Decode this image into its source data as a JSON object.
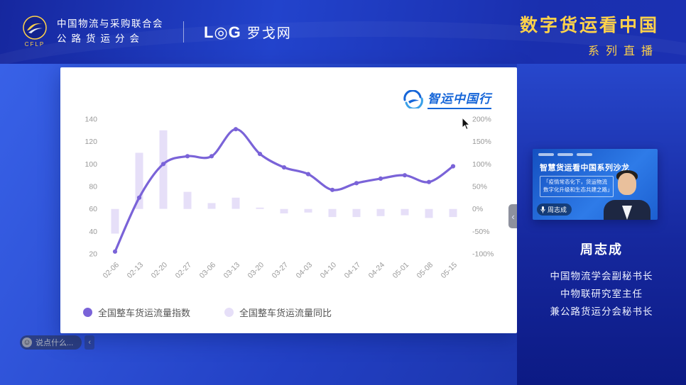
{
  "header": {
    "cflp_acronym": "CFLP",
    "org_line1": "中国物流与采购联合会",
    "org_line2": "公路货运分会",
    "partner_logo": "L◎G",
    "partner_name": "罗戈网",
    "title_main": "数字货运看中国",
    "title_sub": "系列直播"
  },
  "chart_card": {
    "watermark": "智运中国行"
  },
  "chart_data": {
    "type": "combo",
    "title": "",
    "categories": [
      "02-06",
      "02-13",
      "02-20",
      "02-27",
      "03-06",
      "03-13",
      "03-20",
      "03-27",
      "04-03",
      "04-10",
      "04-17",
      "04-24",
      "05-01",
      "05-08",
      "05-15"
    ],
    "series": [
      {
        "name": "全国整车货运流量指数",
        "type": "line",
        "axis": "left",
        "color": "#7a63d8",
        "values": [
          22,
          70,
          100,
          107,
          107,
          131,
          109,
          97,
          91,
          77,
          83,
          87,
          90,
          84,
          98
        ]
      },
      {
        "name": "全国整车货运流量同比",
        "type": "bar",
        "axis": "right",
        "color": "#e6dff8",
        "values": [
          -55,
          125,
          175,
          38,
          13,
          25,
          3,
          -10,
          -8,
          -18,
          -18,
          -16,
          -14,
          -20,
          -18
        ]
      }
    ],
    "left_axis": {
      "min": 20,
      "max": 140,
      "tick_step": 20,
      "suffix": ""
    },
    "right_axis": {
      "min": -100,
      "max": 200,
      "tick_step": 50,
      "suffix": "%"
    },
    "legend_position": "bottom",
    "grid": false
  },
  "sidebar": {
    "video": {
      "title": "智慧货运看中国系列沙龙",
      "subtitle": "「疫情常态化下，货运物流数字化升级和生态共建之路」",
      "name_tag": "周志成"
    },
    "speaker": {
      "name": "周志成",
      "titles": [
        "中国物流学会副秘书长",
        "中物联研究室主任",
        "兼公路货运分会秘书长"
      ]
    }
  },
  "chat": {
    "placeholder": "说点什么..."
  },
  "icons": {
    "collapse_left": "‹",
    "smiley": "☺"
  }
}
